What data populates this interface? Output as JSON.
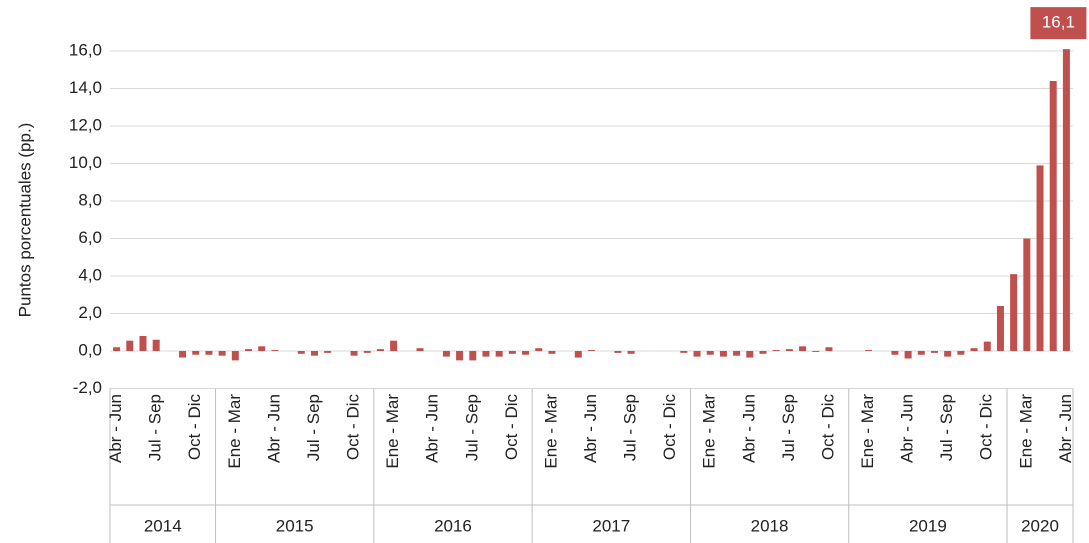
{
  "chart_data": {
    "type": "bar",
    "y_label": "Puntos porcentuales (pp.)",
    "color": "#c0504d",
    "grid": true,
    "categories": [
      "Abr - Jun",
      null,
      null,
      "Jul - Sep",
      null,
      null,
      "Oct - Dic",
      null,
      null,
      "Ene - Mar",
      null,
      null,
      "Abr - Jun",
      null,
      null,
      "Jul - Sep",
      null,
      null,
      "Oct - Dic",
      null,
      null,
      "Ene - Mar",
      null,
      null,
      "Abr - Jun",
      null,
      null,
      "Jul - Sep",
      null,
      null,
      "Oct - Dic",
      null,
      null,
      "Ene - Mar",
      null,
      null,
      "Abr - Jun",
      null,
      null,
      "Jul - Sep",
      null,
      null,
      "Oct - Dic",
      null,
      null,
      "Ene - Mar",
      null,
      null,
      "Abr - Jun",
      null,
      null,
      "Jul - Sep",
      null,
      null,
      "Oct - Dic",
      null,
      null,
      "Ene - Mar",
      null,
      null,
      "Abr - Jun",
      null,
      null,
      "Jul - Sep",
      null,
      null,
      "Oct - Dic",
      null,
      null,
      "Ene - Mar",
      null,
      null,
      "Abr - Jun"
    ],
    "groups": [
      {
        "name": "2014",
        "count": 8
      },
      {
        "name": "2015",
        "count": 12
      },
      {
        "name": "2016",
        "count": 12
      },
      {
        "name": "2017",
        "count": 12
      },
      {
        "name": "2018",
        "count": 12
      },
      {
        "name": "2019",
        "count": 12
      },
      {
        "name": "2020",
        "count": 5
      }
    ],
    "values": [
      0.2,
      0.55,
      0.8,
      0.6,
      0.0,
      -0.35,
      -0.2,
      -0.2,
      -0.25,
      -0.5,
      0.1,
      0.25,
      0.05,
      0.0,
      -0.15,
      -0.25,
      -0.1,
      0.0,
      -0.25,
      -0.1,
      0.1,
      0.55,
      0.0,
      0.15,
      0.0,
      -0.3,
      -0.5,
      -0.5,
      -0.3,
      -0.3,
      -0.15,
      -0.2,
      0.15,
      -0.15,
      0.0,
      -0.35,
      0.05,
      0.0,
      -0.1,
      -0.15,
      0.0,
      0.0,
      0.0,
      -0.1,
      -0.3,
      -0.2,
      -0.3,
      -0.25,
      -0.35,
      -0.15,
      0.05,
      0.1,
      0.25,
      -0.05,
      0.2,
      0.0,
      0.0,
      0.05,
      0.0,
      -0.2,
      -0.4,
      -0.2,
      -0.1,
      -0.3,
      -0.2,
      0.15,
      0.5,
      2.4,
      4.1,
      6.0,
      9.9,
      14.4,
      16.1
    ],
    "value_labels": [
      null,
      null,
      null,
      null,
      null,
      null,
      null,
      null,
      null,
      null,
      null,
      null,
      null,
      null,
      null,
      null,
      null,
      null,
      null,
      null,
      null,
      null,
      null,
      null,
      null,
      null,
      null,
      null,
      null,
      null,
      null,
      null,
      null,
      null,
      null,
      null,
      null,
      null,
      null,
      null,
      null,
      null,
      null,
      null,
      null,
      null,
      null,
      null,
      null,
      null,
      null,
      null,
      null,
      null,
      null,
      null,
      null,
      null,
      null,
      null,
      null,
      null,
      null,
      null,
      null,
      null,
      null,
      null,
      null,
      null,
      null,
      null,
      "16,1"
    ],
    "ylim": [
      -2,
      16
    ],
    "yticks": [
      {
        "value": -2,
        "label": "-2,0"
      },
      {
        "value": 0,
        "label": "0,0"
      },
      {
        "value": 2,
        "label": "2,0"
      },
      {
        "value": 4,
        "label": "4,0"
      },
      {
        "value": 6,
        "label": "6,0"
      },
      {
        "value": 8,
        "label": "8,0"
      },
      {
        "value": 10,
        "label": "10,0"
      },
      {
        "value": 12,
        "label": "12,0"
      },
      {
        "value": 14,
        "label": "14,0"
      },
      {
        "value": 16,
        "label": "16,0"
      }
    ]
  }
}
